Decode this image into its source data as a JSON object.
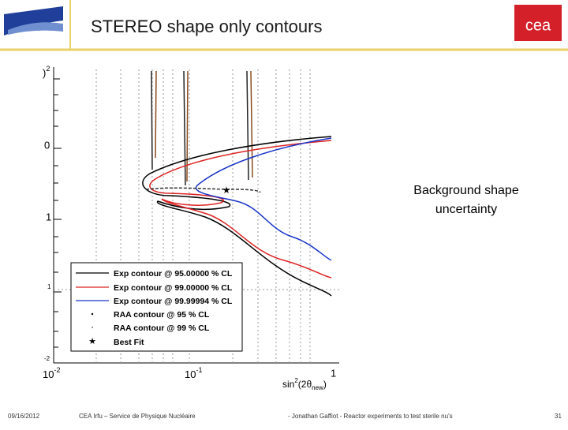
{
  "header": {
    "title": "STEREO shape only contours",
    "logo_text": "cea"
  },
  "plot": {
    "y_ticks": [
      {
        "base": ")",
        "exp": "2"
      },
      {
        "base": "0"
      },
      {
        "base": "1"
      },
      {
        "base": "1"
      },
      {
        "base": "-2"
      }
    ],
    "x_ticks": [
      {
        "base": "10",
        "exp": "-2"
      },
      {
        "base": "10",
        "exp": "-1"
      },
      {
        "base": "1"
      }
    ],
    "x_title": {
      "pre": "sin",
      "sup": "2",
      "mid": "(2θ",
      "sub": "new",
      "post": ")"
    },
    "legend": [
      "Exp contour @ 95.00000 % CL",
      "Exp contour @ 99.00000 % CL",
      "Exp contour @ 99.99994 % CL",
      "RAA contour @ 95 % CL",
      "RAA contour @ 99 % CL",
      "Best Fit"
    ]
  },
  "annotation": [
    "Background shape",
    "uncertainty"
  ],
  "footer": {
    "date": "09/16/2012",
    "org": "CEA Irfu – Service de Physique Nucléaire",
    "talk": "- Jonathan Gaffiot - Reactor experiments to test sterile nu's",
    "page": "31"
  }
}
